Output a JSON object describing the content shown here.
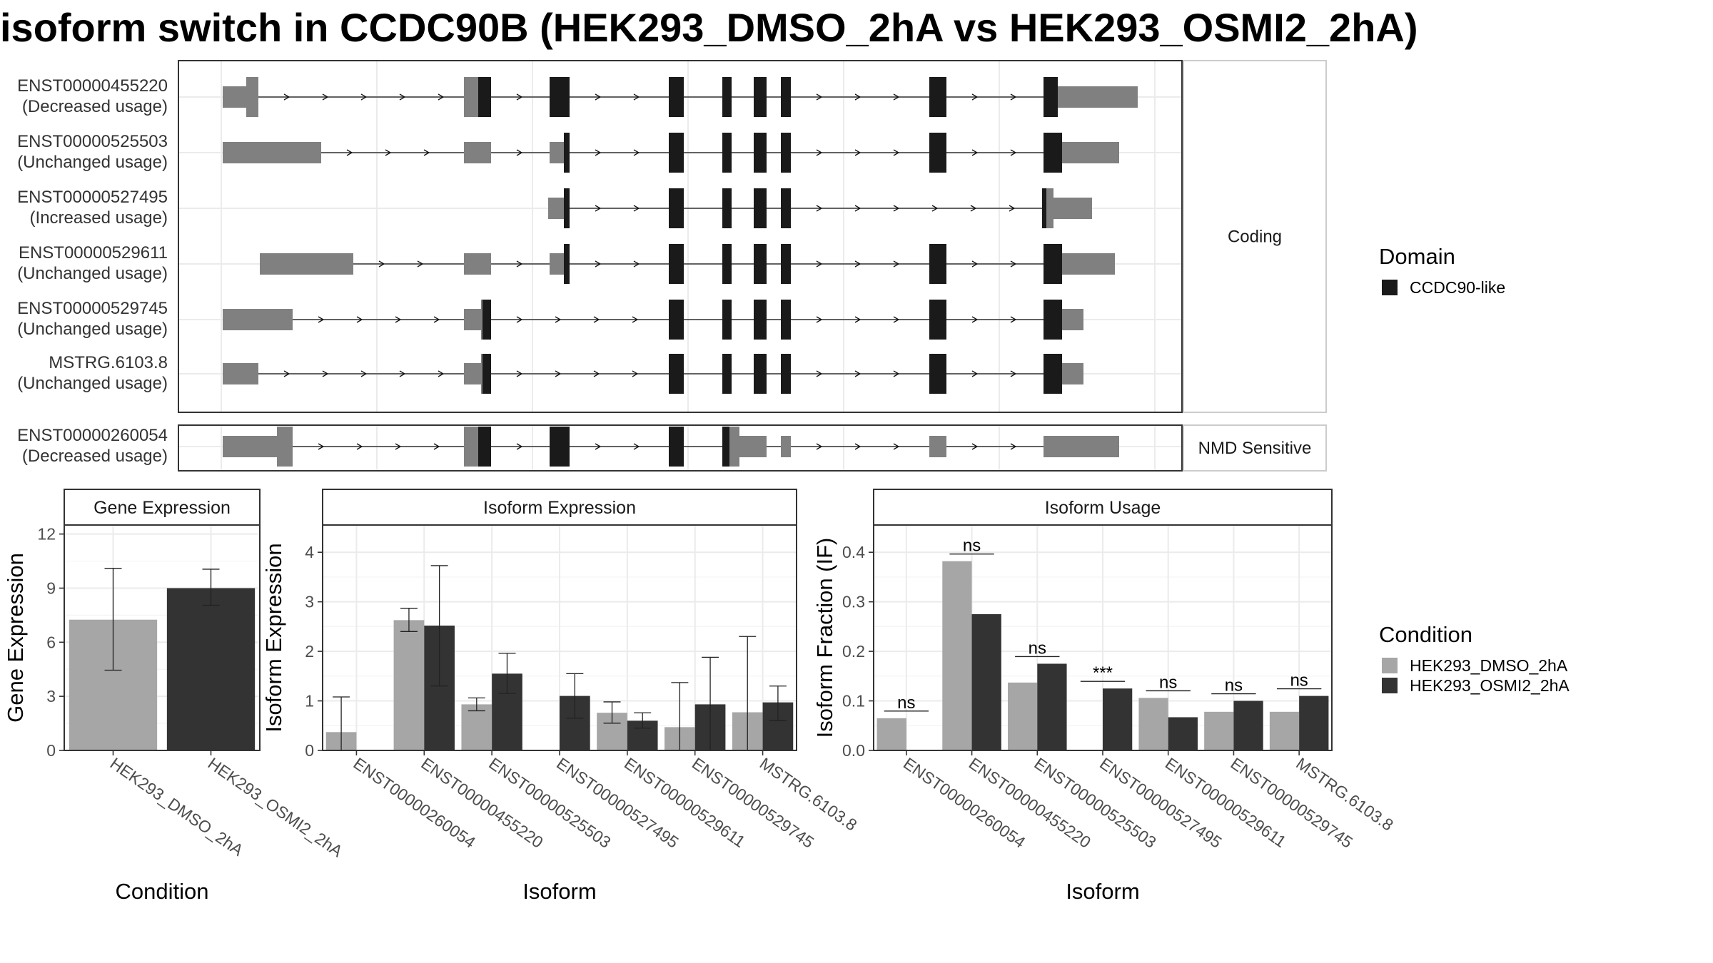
{
  "title": "isoform switch in CCDC90B (HEK293_DMSO_2hA vs HEK293_OSMI2_2hA)",
  "colors": {
    "cond1": "#a6a6a6",
    "cond2": "#333333",
    "domain": "#1a1a1a",
    "utr": "#808080",
    "frame": "#333333",
    "grid": "#ebebeb"
  },
  "chart_data": [
    {
      "type": "gene-structure",
      "panels": [
        {
          "strip": "Coding",
          "tracks": [
            {
              "id": "ENST00000455220",
              "usage": "(Decreased usage)"
            },
            {
              "id": "ENST00000525503",
              "usage": "(Unchanged usage)"
            },
            {
              "id": "ENST00000527495",
              "usage": "(Increased usage)"
            },
            {
              "id": "ENST00000529611",
              "usage": "(Unchanged usage)"
            },
            {
              "id": "ENST00000529745",
              "usage": "(Unchanged usage)"
            },
            {
              "id": "MSTRG.6103.8",
              "usage": "(Unchanged usage)"
            }
          ]
        },
        {
          "strip": "NMD Sensitive",
          "tracks": [
            {
              "id": "ENST00000260054",
              "usage": "(Decreased usage)"
            }
          ]
        }
      ],
      "legend": {
        "title": "Domain",
        "entries": [
          "CCDC90-like"
        ],
        "position": "right"
      }
    },
    {
      "type": "bar",
      "strip": "Gene Expression",
      "xlabel": "Condition",
      "ylabel": "Gene Expression",
      "categories": [
        "HEK293_DMSO_2hA",
        "HEK293_OSMI2_2hA"
      ],
      "values": [
        7.25,
        9.0
      ],
      "error_low": [
        4.45,
        8.05
      ],
      "error_high": [
        10.1,
        10.05
      ],
      "ylim": [
        0,
        12.5
      ],
      "yticks": [
        0,
        3,
        6,
        9,
        12
      ],
      "grid": true
    },
    {
      "type": "bar",
      "strip": "Isoform Expression",
      "xlabel": "Isoform",
      "ylabel": "Isoform Expression",
      "categories": [
        "ENST00000260054",
        "ENST00000455220",
        "ENST00000525503",
        "ENST00000527495",
        "ENST00000529611",
        "ENST00000529745",
        "MSTRG.6103.8"
      ],
      "series": [
        {
          "name": "HEK293_DMSO_2hA",
          "values": [
            0.37,
            2.63,
            0.93,
            0.0,
            0.76,
            0.47,
            0.77
          ],
          "error_low": [
            0.0,
            2.4,
            0.8,
            0.0,
            0.55,
            0.0,
            0.0
          ],
          "error_high": [
            1.08,
            2.87,
            1.06,
            0.0,
            0.98,
            1.37,
            2.3
          ]
        },
        {
          "name": "HEK293_OSMI2_2hA",
          "values": [
            0.0,
            2.52,
            1.55,
            1.1,
            0.6,
            0.93,
            0.97
          ],
          "error_low": [
            0.0,
            1.3,
            1.15,
            0.65,
            0.45,
            0.0,
            0.6
          ],
          "error_high": [
            0.0,
            3.73,
            1.96,
            1.55,
            0.76,
            1.88,
            1.3
          ]
        }
      ],
      "ylim": [
        0,
        4.55
      ],
      "yticks": [
        0,
        1,
        2,
        3,
        4
      ],
      "grid": true
    },
    {
      "type": "bar",
      "strip": "Isoform Usage",
      "xlabel": "Isoform",
      "ylabel": "Isoform Fraction (IF)",
      "categories": [
        "ENST00000260054",
        "ENST00000455220",
        "ENST00000525503",
        "ENST00000527495",
        "ENST00000529611",
        "ENST00000529745",
        "MSTRG.6103.8"
      ],
      "series": [
        {
          "name": "HEK293_DMSO_2hA",
          "values": [
            0.065,
            0.382,
            0.137,
            0.0,
            0.106,
            0.078,
            0.078
          ]
        },
        {
          "name": "HEK293_OSMI2_2hA",
          "values": [
            0.0,
            0.275,
            0.175,
            0.125,
            0.067,
            0.1,
            0.11
          ]
        }
      ],
      "significance": [
        "ns",
        "ns",
        "ns",
        "***",
        "ns",
        "ns",
        "ns"
      ],
      "ylim": [
        0,
        0.455
      ],
      "yticks": [
        "0.0",
        "0.1",
        "0.2",
        "0.3",
        "0.4"
      ],
      "grid": true
    }
  ],
  "condition_legend": {
    "title": "Condition",
    "entries": [
      "HEK293_DMSO_2hA",
      "HEK293_OSMI2_2hA"
    ],
    "position": "right"
  }
}
